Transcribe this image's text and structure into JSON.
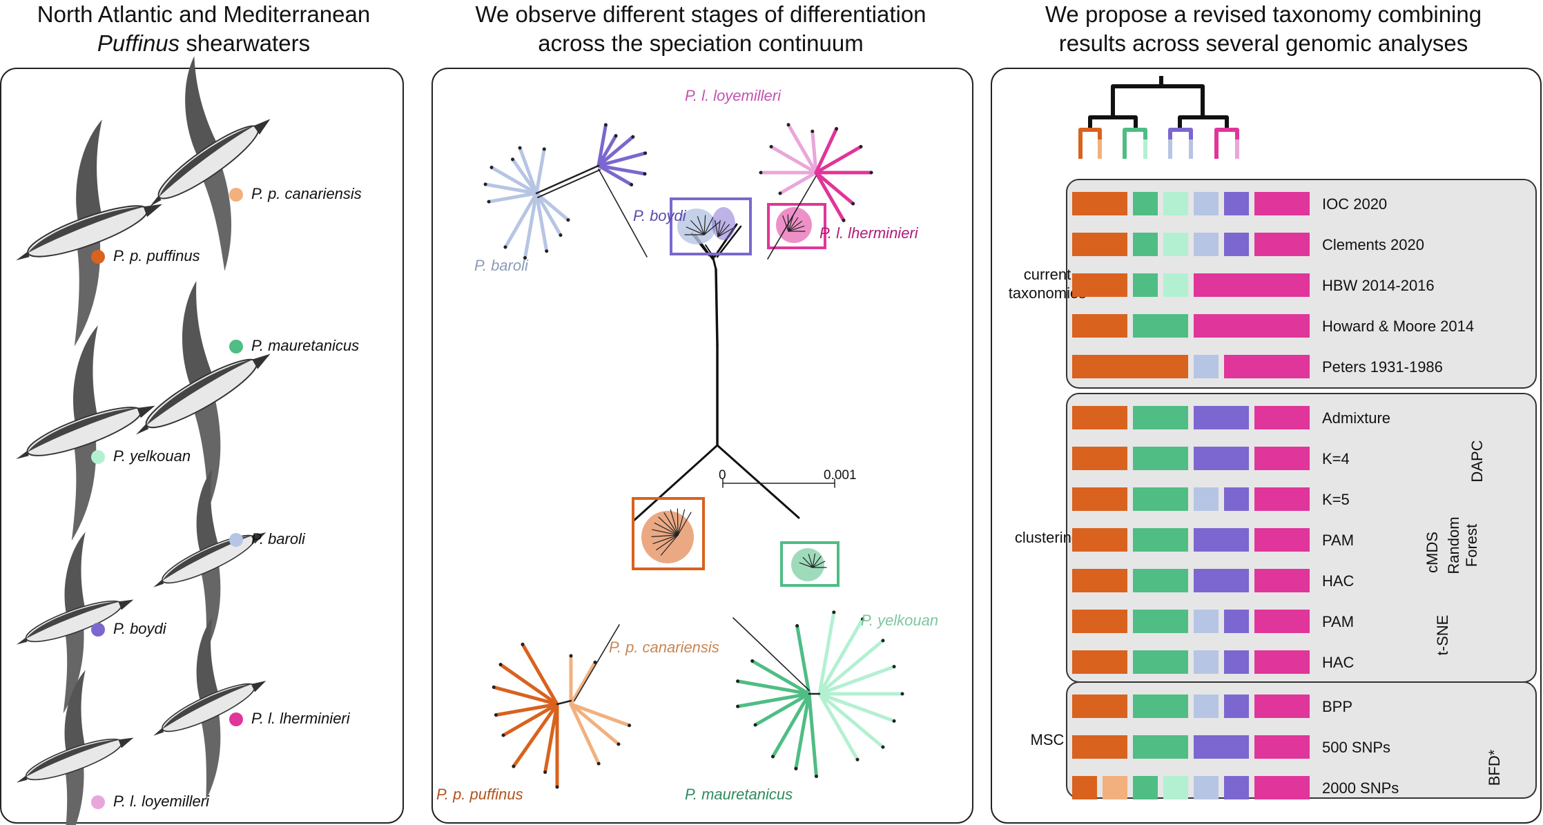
{
  "headers": {
    "left_line1": "North Atlantic and Mediterranean",
    "left_line2_italic": "Puffinus",
    "left_line2_rest": " shearwaters",
    "middle_line1": "We observe different stages of differentiation",
    "middle_line2": "across the speciation continuum",
    "right_line1": "We propose a revised taxonomy combining",
    "right_line2": "results across several genomic analyses"
  },
  "colors": {
    "p_p_puffinus": "#d9621e",
    "p_p_canariensis": "#f2b07e",
    "p_mauretanicus": "#4fbd84",
    "p_yelkouan": "#b3f0d2",
    "p_baroli": "#b6c5e3",
    "p_boydi": "#7b67cf",
    "p_l_lherminieri": "#e0359a",
    "p_l_loyemilleri": "#e9a6da"
  },
  "species": [
    {
      "label": "P. p. canariensis",
      "color": "#f2b07e"
    },
    {
      "label": "P. p. puffinus",
      "color": "#d9621e"
    },
    {
      "label": "P. mauretanicus",
      "color": "#4fbd84"
    },
    {
      "label": "P. yelkouan",
      "color": "#b3f0d2"
    },
    {
      "label": "P. baroli",
      "color": "#b6c5e3"
    },
    {
      "label": "P. boydi",
      "color": "#7b67cf"
    },
    {
      "label": "P. l. lherminieri",
      "color": "#e0359a"
    },
    {
      "label": "P. l. loyemilleri",
      "color": "#e9a6da"
    }
  ],
  "tree": {
    "scale_min": "0",
    "scale_max": "0.001",
    "labels": {
      "loyemilleri": "P. l. loyemilleri",
      "boydi": "P. boydi",
      "lherminieri": "P. l. lherminieri",
      "baroli": "P. baroli",
      "canariensis": "P. p. canariensis",
      "yelkouan": "P. yelkouan",
      "puffinus": "P. p. puffinus",
      "mauretanicus": "P. mauretanicus"
    }
  },
  "taxonomy": {
    "groups": [
      {
        "label": "current\ntaxonomies",
        "rows": [
          {
            "name": "IOC 2020",
            "blocks": [
              [
                "#d9621e",
                1
              ],
              [
                "#4fbd84",
                0.5
              ],
              [
                "#b3f0d2",
                0.5
              ],
              [
                "#b6c5e3",
                0.5
              ],
              [
                "#7b67cf",
                0.5
              ],
              [
                "#e0359a",
                1
              ]
            ]
          },
          {
            "name": "Clements 2020",
            "blocks": [
              [
                "#d9621e",
                1
              ],
              [
                "#4fbd84",
                0.5
              ],
              [
                "#b3f0d2",
                0.5
              ],
              [
                "#b6c5e3",
                0.5
              ],
              [
                "#7b67cf",
                0.5
              ],
              [
                "#e0359a",
                1
              ]
            ]
          },
          {
            "name": "HBW 2014-2016",
            "blocks": [
              [
                "#d9621e",
                1
              ],
              [
                "#4fbd84",
                0.5
              ],
              [
                "#b3f0d2",
                0.5
              ],
              [
                "#e0359a",
                2
              ]
            ]
          },
          {
            "name": "Howard & Moore 2014",
            "blocks": [
              [
                "#d9621e",
                1
              ],
              [
                "#4fbd84",
                1
              ],
              [
                "#e0359a",
                2
              ]
            ]
          },
          {
            "name": "Peters 1931-1986",
            "blocks": [
              [
                "#d9621e",
                2
              ],
              [
                "#b6c5e3",
                0.5
              ],
              [
                "#e0359a",
                1.5
              ]
            ]
          }
        ]
      },
      {
        "label": "clustering",
        "rows": [
          {
            "name": "Admixture",
            "blocks": [
              [
                "#d9621e",
                1
              ],
              [
                "#4fbd84",
                1
              ],
              [
                "#7b67cf",
                1
              ],
              [
                "#e0359a",
                1
              ]
            ]
          },
          {
            "name": "K=4",
            "blocks": [
              [
                "#d9621e",
                1
              ],
              [
                "#4fbd84",
                1
              ],
              [
                "#7b67cf",
                1
              ],
              [
                "#e0359a",
                1
              ]
            ]
          },
          {
            "name": "K=5",
            "blocks": [
              [
                "#d9621e",
                1
              ],
              [
                "#4fbd84",
                1
              ],
              [
                "#b6c5e3",
                0.5
              ],
              [
                "#7b67cf",
                0.5
              ],
              [
                "#e0359a",
                1
              ]
            ]
          },
          {
            "name": "PAM",
            "blocks": [
              [
                "#d9621e",
                1
              ],
              [
                "#4fbd84",
                1
              ],
              [
                "#7b67cf",
                1
              ],
              [
                "#e0359a",
                1
              ]
            ]
          },
          {
            "name": "HAC",
            "blocks": [
              [
                "#d9621e",
                1
              ],
              [
                "#4fbd84",
                1
              ],
              [
                "#7b67cf",
                1
              ],
              [
                "#e0359a",
                1
              ]
            ]
          },
          {
            "name": "PAM",
            "blocks": [
              [
                "#d9621e",
                1
              ],
              [
                "#4fbd84",
                1
              ],
              [
                "#b6c5e3",
                0.5
              ],
              [
                "#7b67cf",
                0.5
              ],
              [
                "#e0359a",
                1
              ]
            ]
          },
          {
            "name": "HAC",
            "blocks": [
              [
                "#d9621e",
                1
              ],
              [
                "#4fbd84",
                1
              ],
              [
                "#b6c5e3",
                0.5
              ],
              [
                "#7b67cf",
                0.5
              ],
              [
                "#e0359a",
                1
              ]
            ]
          }
        ]
      },
      {
        "label": "MSC",
        "rows": [
          {
            "name": "BPP",
            "blocks": [
              [
                "#d9621e",
                1
              ],
              [
                "#4fbd84",
                1
              ],
              [
                "#b6c5e3",
                0.5
              ],
              [
                "#7b67cf",
                0.5
              ],
              [
                "#e0359a",
                1
              ]
            ]
          },
          {
            "name": "500 SNPs",
            "blocks": [
              [
                "#d9621e",
                1
              ],
              [
                "#4fbd84",
                1
              ],
              [
                "#7b67cf",
                1
              ],
              [
                "#e0359a",
                1
              ]
            ]
          },
          {
            "name": "2000 SNPs",
            "blocks": [
              [
                "#d9621e",
                0.5
              ],
              [
                "#f2b07e",
                0.5
              ],
              [
                "#4fbd84",
                0.5
              ],
              [
                "#b3f0d2",
                0.5
              ],
              [
                "#b6c5e3",
                0.5
              ],
              [
                "#7b67cf",
                0.5
              ],
              [
                "#e0359a",
                1
              ]
            ]
          }
        ]
      }
    ],
    "side_labels": {
      "dapc": "DAPC",
      "cmds": "cMDS",
      "random_forest_1": "Random",
      "random_forest_2": "Forest",
      "tsne": "t-SNE",
      "bfd": "BFD*"
    }
  }
}
